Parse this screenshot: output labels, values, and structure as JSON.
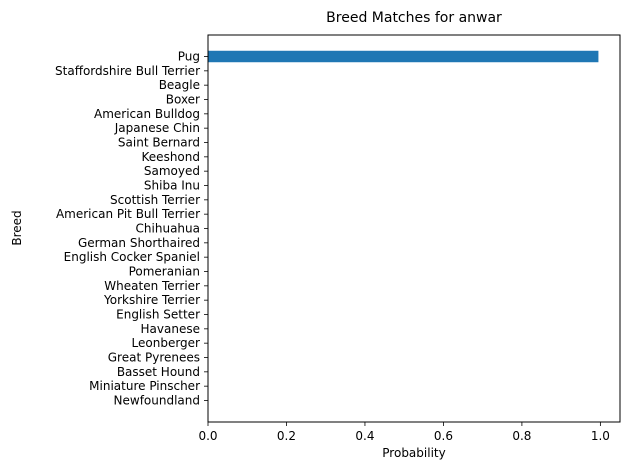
{
  "chart_data": {
    "type": "bar",
    "orientation": "horizontal",
    "title": "Breed Matches for anwar",
    "xlabel": "Probability",
    "ylabel": "Breed",
    "xlim": [
      0.0,
      1.05
    ],
    "xticks": [
      0.0,
      0.2,
      0.4,
      0.6,
      0.8,
      1.0
    ],
    "xtick_labels": [
      "0.0",
      "0.2",
      "0.4",
      "0.6",
      "0.8",
      "1.0"
    ],
    "grid": false,
    "bar_color": "#1f77b4",
    "categories": [
      "Pug",
      "Staffordshire Bull Terrier",
      "Beagle",
      "Boxer",
      "American Bulldog",
      "Japanese Chin",
      "Saint Bernard",
      "Keeshond",
      "Samoyed",
      "Shiba Inu",
      "Scottish Terrier",
      "American Pit Bull Terrier",
      "Chihuahua",
      "German Shorthaired",
      "English Cocker Spaniel",
      "Pomeranian",
      "Wheaten Terrier",
      "Yorkshire Terrier",
      "English Setter",
      "Havanese",
      "Leonberger",
      "Great Pyrenees",
      "Basset Hound",
      "Miniature Pinscher",
      "Newfoundland"
    ],
    "values": [
      0.995,
      0.001,
      0.0005,
      0.0004,
      0.0003,
      0.0002,
      0.0002,
      0.0001,
      0.0001,
      0.0001,
      0.0001,
      0.0001,
      0.0001,
      0.0,
      0.0,
      0.0,
      0.0,
      0.0,
      0.0,
      0.0,
      0.0,
      0.0,
      0.0,
      0.0,
      0.0
    ]
  }
}
